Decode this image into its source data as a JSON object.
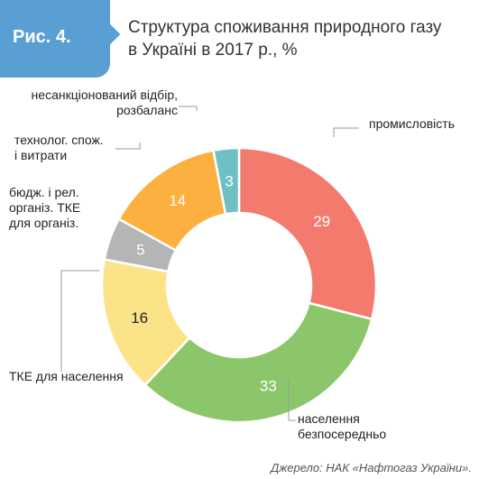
{
  "figure": {
    "label": "Рис. 4.",
    "title_line1": "Структура споживання природного газу",
    "title_line2": "в Україні в 2017 р., %"
  },
  "source": "Джерело: НАК «Нафтогаз України».",
  "chart_data": {
    "type": "pie",
    "donut": true,
    "unit": "%",
    "slices": [
      {
        "label_lines": [
          "промисловість"
        ],
        "value": 29,
        "color": "#f27b6e",
        "value_color": "#ffffff"
      },
      {
        "label_lines": [
          "населення",
          "безпосередньо"
        ],
        "value": 33,
        "color": "#8cc66b",
        "value_color": "#ffffff"
      },
      {
        "label_lines": [
          "ТКЕ для населення"
        ],
        "value": 16,
        "color": "#fde388",
        "value_color": "#222222"
      },
      {
        "label_lines": [
          "бюдж. і рел.",
          "організ. ТКЕ",
          "для організ."
        ],
        "value": 5,
        "color": "#b5b5b5",
        "value_color": "#ffffff"
      },
      {
        "label_lines": [
          "технолог. спож.",
          "і витрати"
        ],
        "value": 14,
        "color": "#fbb040",
        "value_color": "#ffffff"
      },
      {
        "label_lines": [
          "несанкціонований відбір,",
          "розбаланс"
        ],
        "value": 3,
        "color": "#6fc0c4",
        "value_color": "#ffffff"
      }
    ]
  }
}
